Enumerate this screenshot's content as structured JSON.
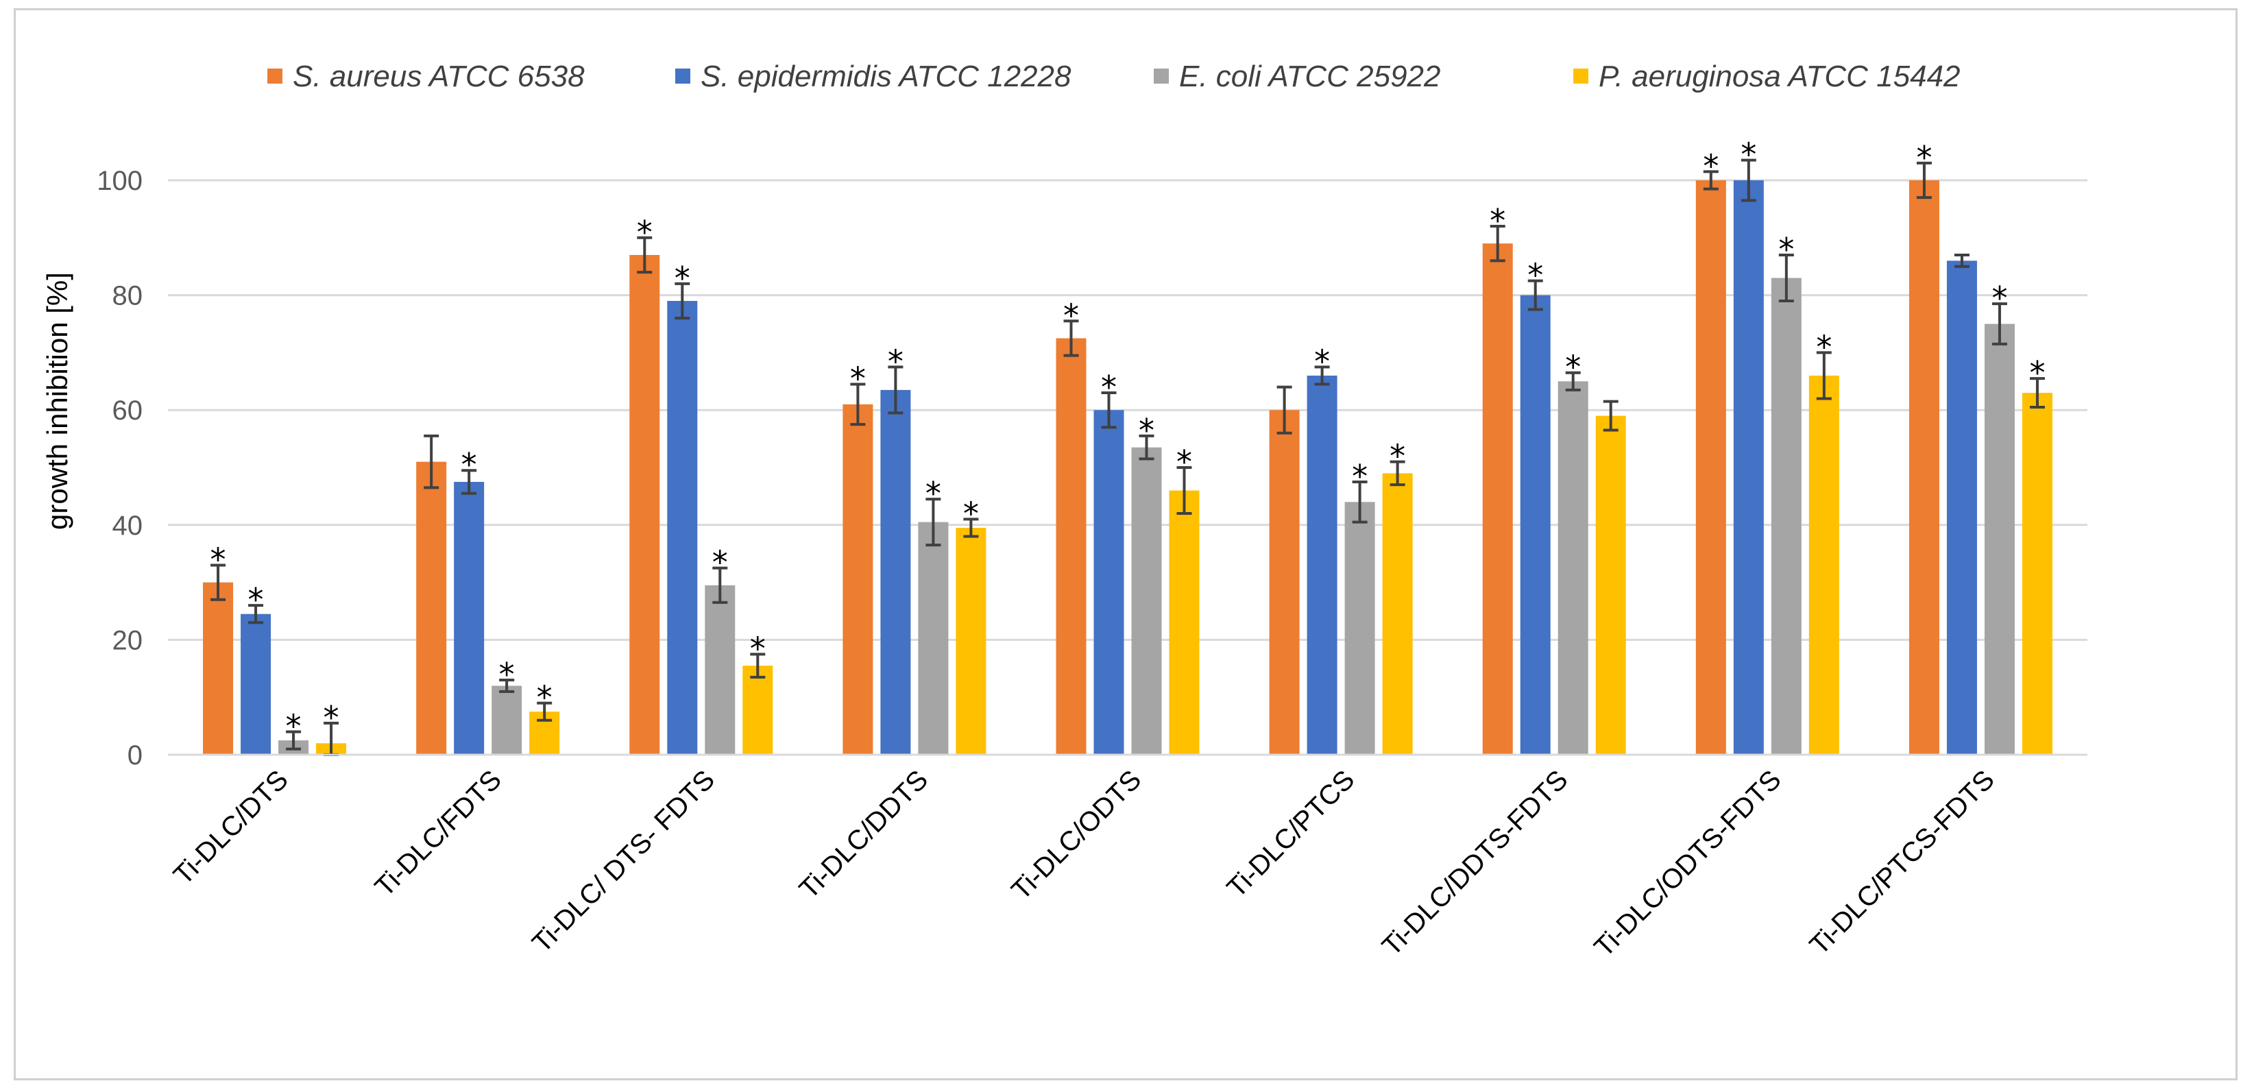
{
  "chart_data": {
    "type": "bar",
    "title": "",
    "xlabel": "",
    "ylabel": "growth inhibition [%]",
    "ylim": [
      0,
      100
    ],
    "yticks": [
      "0",
      "20",
      "40",
      "60",
      "80",
      "100"
    ],
    "grid": true,
    "legend_position": "top",
    "significance_marker": "*",
    "categories": [
      "Ti-DLC/DTS",
      "Ti-DLC/FDTS",
      "Ti-DLC/ DTS- FDTS",
      "Ti-DLC/DDTS",
      "Ti-DLC/ODTS",
      "Ti-DLC/PTCS",
      "Ti-DLC/DDTS-FDTS",
      "Ti-DLC/ODTS-FDTS",
      "Ti-DLC/PTCS-FDTS"
    ],
    "series": [
      {
        "name": "S. aureus ATCC 6538",
        "color": "#ED7D31",
        "values": [
          30,
          51,
          87,
          61,
          72.5,
          60,
          89,
          100,
          100
        ],
        "errors": [
          3,
          4.5,
          3,
          3.5,
          3,
          4,
          3,
          1.5,
          3
        ],
        "significant": [
          true,
          false,
          true,
          true,
          true,
          false,
          true,
          true,
          true
        ]
      },
      {
        "name": "S. epidermidis ATCC 12228",
        "color": "#4472C4",
        "values": [
          24.5,
          47.5,
          79,
          63.5,
          60,
          66,
          80,
          100,
          86
        ],
        "errors": [
          1.5,
          2,
          3,
          4,
          3,
          1.5,
          2.5,
          3.5,
          1
        ],
        "significant": [
          true,
          true,
          true,
          true,
          true,
          true,
          true,
          true,
          false
        ]
      },
      {
        "name": "E. coli ATCC 25922",
        "color": "#A5A5A5",
        "values": [
          2.5,
          12,
          29.5,
          40.5,
          53.5,
          44,
          65,
          83,
          75
        ],
        "errors": [
          1.5,
          1,
          3,
          4,
          2,
          3.5,
          1.5,
          4,
          3.5
        ],
        "significant": [
          true,
          true,
          true,
          true,
          true,
          true,
          true,
          true,
          true
        ]
      },
      {
        "name": "P. aeruginosa ATCC 15442",
        "color": "#FFC000",
        "values": [
          2,
          7.5,
          15.5,
          39.5,
          46,
          49,
          59,
          66,
          63
        ],
        "errors": [
          3.5,
          1.5,
          2,
          1.5,
          4,
          2,
          2.5,
          4,
          2.5
        ],
        "significant": [
          true,
          true,
          true,
          true,
          true,
          true,
          false,
          true,
          true
        ]
      }
    ]
  }
}
